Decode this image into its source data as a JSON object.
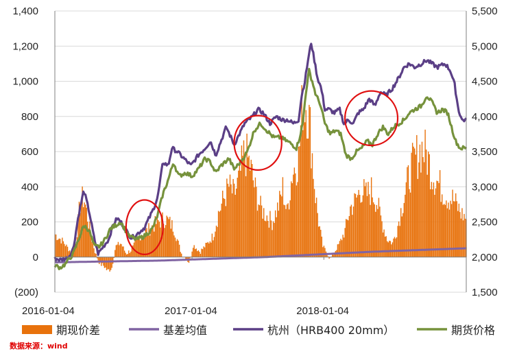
{
  "chart_data": {
    "type": "bar+line",
    "title": "",
    "x_tick_labels": [
      "2016-01-04",
      "2017-01-04",
      "2018-01-04"
    ],
    "left_axis": {
      "range": [
        -200,
        1400
      ],
      "ticks": [
        -200,
        0,
        200,
        400,
        600,
        800,
        1000,
        1200,
        1400
      ],
      "tick_labels": [
        "(200)",
        "0",
        "200",
        "400",
        "600",
        "800",
        "1,000",
        "1,200",
        "1,400"
      ]
    },
    "right_axis": {
      "range": [
        1500,
        5500
      ],
      "ticks": [
        1500,
        2000,
        2500,
        3000,
        3500,
        4000,
        4500,
        5000,
        5500
      ],
      "tick_labels": [
        "1,500",
        "2,000",
        "2,500",
        "3,000",
        "3,500",
        "4,000",
        "4,500",
        "5,000",
        "5,500"
      ]
    },
    "x_range": [
      0,
      780
    ],
    "x_tick_positions": [
      0,
      260,
      510
    ],
    "series": [
      {
        "name": "期现价差",
        "kind": "bar",
        "axis": "left",
        "color": "#e8720c",
        "keypoints": [
          [
            0,
            130
          ],
          [
            15,
            90
          ],
          [
            30,
            30
          ],
          [
            40,
            90
          ],
          [
            48,
            310
          ],
          [
            55,
            340
          ],
          [
            63,
            210
          ],
          [
            70,
            100
          ],
          [
            78,
            10
          ],
          [
            86,
            -40
          ],
          [
            93,
            -50
          ],
          [
            100,
            -80
          ],
          [
            108,
            -60
          ],
          [
            115,
            60
          ],
          [
            125,
            80
          ],
          [
            135,
            20
          ],
          [
            145,
            40
          ],
          [
            160,
            120
          ],
          [
            175,
            150
          ],
          [
            195,
            200
          ],
          [
            210,
            220
          ],
          [
            225,
            170
          ],
          [
            240,
            20
          ],
          [
            255,
            -30
          ],
          [
            262,
            70
          ],
          [
            275,
            30
          ],
          [
            290,
            80
          ],
          [
            300,
            120
          ],
          [
            310,
            250
          ],
          [
            320,
            330
          ],
          [
            330,
            400
          ],
          [
            340,
            350
          ],
          [
            350,
            450
          ],
          [
            360,
            600
          ],
          [
            370,
            520
          ],
          [
            380,
            380
          ],
          [
            390,
            280
          ],
          [
            400,
            240
          ],
          [
            412,
            200
          ],
          [
            425,
            300
          ],
          [
            432,
            390
          ],
          [
            440,
            250
          ],
          [
            450,
            480
          ],
          [
            462,
            560
          ],
          [
            470,
            900
          ],
          [
            478,
            880
          ],
          [
            485,
            700
          ],
          [
            493,
            380
          ],
          [
            500,
            200
          ],
          [
            508,
            60
          ],
          [
            515,
            30
          ],
          [
            522,
            -10
          ],
          [
            530,
            30
          ],
          [
            540,
            80
          ],
          [
            550,
            150
          ],
          [
            560,
            280
          ],
          [
            570,
            320
          ],
          [
            580,
            390
          ],
          [
            590,
            350
          ],
          [
            600,
            380
          ],
          [
            610,
            320
          ],
          [
            620,
            200
          ],
          [
            630,
            100
          ],
          [
            640,
            80
          ],
          [
            648,
            150
          ],
          [
            655,
            250
          ],
          [
            665,
            380
          ],
          [
            675,
            500
          ],
          [
            685,
            570
          ],
          [
            695,
            620
          ],
          [
            705,
            580
          ],
          [
            715,
            480
          ],
          [
            725,
            430
          ],
          [
            735,
            380
          ],
          [
            745,
            340
          ],
          [
            755,
            330
          ],
          [
            770,
            250
          ],
          [
            780,
            220
          ]
        ]
      },
      {
        "name": "基差均值",
        "kind": "line",
        "axis": "left",
        "color": "#8064a2",
        "keypoints": [
          [
            0,
            -30
          ],
          [
            200,
            -20
          ],
          [
            400,
            0
          ],
          [
            600,
            30
          ],
          [
            780,
            50
          ]
        ]
      },
      {
        "name": "杭州（HRB400 20mm）",
        "kind": "line",
        "axis": "right",
        "color": "#5b3f86",
        "keypoints": [
          [
            0,
            1980
          ],
          [
            10,
            1960
          ],
          [
            25,
            1990
          ],
          [
            35,
            2120
          ],
          [
            45,
            2600
          ],
          [
            55,
            2950
          ],
          [
            65,
            2650
          ],
          [
            75,
            2250
          ],
          [
            82,
            2050
          ],
          [
            92,
            2150
          ],
          [
            102,
            2250
          ],
          [
            110,
            2450
          ],
          [
            118,
            2550
          ],
          [
            125,
            2500
          ],
          [
            135,
            2380
          ],
          [
            145,
            2270
          ],
          [
            155,
            2320
          ],
          [
            170,
            2420
          ],
          [
            185,
            2650
          ],
          [
            195,
            2850
          ],
          [
            205,
            3350
          ],
          [
            215,
            3300
          ],
          [
            222,
            3550
          ],
          [
            232,
            3500
          ],
          [
            245,
            3400
          ],
          [
            258,
            3300
          ],
          [
            272,
            3450
          ],
          [
            285,
            3550
          ],
          [
            295,
            3650
          ],
          [
            305,
            3450
          ],
          [
            315,
            3650
          ],
          [
            325,
            3850
          ],
          [
            340,
            3600
          ],
          [
            350,
            3750
          ],
          [
            360,
            3900
          ],
          [
            375,
            4000
          ],
          [
            385,
            4100
          ],
          [
            395,
            4050
          ],
          [
            408,
            3900
          ],
          [
            420,
            4000
          ],
          [
            432,
            3950
          ],
          [
            442,
            3950
          ],
          [
            452,
            3900
          ],
          [
            462,
            3950
          ],
          [
            468,
            4300
          ],
          [
            474,
            4500
          ],
          [
            480,
            4800
          ],
          [
            486,
            5050
          ],
          [
            492,
            4800
          ],
          [
            498,
            4550
          ],
          [
            505,
            4400
          ],
          [
            512,
            4100
          ],
          [
            520,
            4100
          ],
          [
            530,
            4050
          ],
          [
            540,
            4100
          ],
          [
            548,
            3900
          ],
          [
            557,
            3950
          ],
          [
            566,
            3900
          ],
          [
            575,
            4050
          ],
          [
            585,
            4100
          ],
          [
            596,
            4250
          ],
          [
            607,
            4150
          ],
          [
            617,
            4350
          ],
          [
            628,
            4300
          ],
          [
            640,
            4400
          ],
          [
            652,
            4550
          ],
          [
            662,
            4700
          ],
          [
            672,
            4750
          ],
          [
            682,
            4700
          ],
          [
            695,
            4750
          ],
          [
            705,
            4800
          ],
          [
            715,
            4750
          ],
          [
            725,
            4700
          ],
          [
            740,
            4750
          ],
          [
            750,
            4650
          ],
          [
            758,
            4450
          ],
          [
            765,
            4100
          ],
          [
            772,
            3950
          ],
          [
            780,
            3950
          ]
        ]
      },
      {
        "name": "期货价格",
        "kind": "line",
        "axis": "right",
        "color": "#76923c",
        "keypoints": [
          [
            0,
            1880
          ],
          [
            10,
            1850
          ],
          [
            20,
            1900
          ],
          [
            35,
            2050
          ],
          [
            45,
            2250
          ],
          [
            55,
            2450
          ],
          [
            65,
            2380
          ],
          [
            75,
            2150
          ],
          [
            85,
            2150
          ],
          [
            95,
            2250
          ],
          [
            105,
            2400
          ],
          [
            115,
            2450
          ],
          [
            125,
            2500
          ],
          [
            140,
            2300
          ],
          [
            155,
            2250
          ],
          [
            170,
            2300
          ],
          [
            185,
            2400
          ],
          [
            195,
            2600
          ],
          [
            205,
            2900
          ],
          [
            215,
            3100
          ],
          [
            225,
            3350
          ],
          [
            235,
            3150
          ],
          [
            248,
            3200
          ],
          [
            260,
            3150
          ],
          [
            272,
            3250
          ],
          [
            285,
            3400
          ],
          [
            295,
            3350
          ],
          [
            305,
            3200
          ],
          [
            315,
            3300
          ],
          [
            330,
            3400
          ],
          [
            340,
            3250
          ],
          [
            352,
            3350
          ],
          [
            365,
            3500
          ],
          [
            378,
            3800
          ],
          [
            390,
            3900
          ],
          [
            402,
            3800
          ],
          [
            415,
            3700
          ],
          [
            428,
            3700
          ],
          [
            440,
            3650
          ],
          [
            450,
            3600
          ],
          [
            458,
            3550
          ],
          [
            464,
            3700
          ],
          [
            470,
            3900
          ],
          [
            476,
            4350
          ],
          [
            482,
            4650
          ],
          [
            488,
            4500
          ],
          [
            495,
            4300
          ],
          [
            502,
            4200
          ],
          [
            512,
            3900
          ],
          [
            522,
            3750
          ],
          [
            532,
            3800
          ],
          [
            542,
            3750
          ],
          [
            552,
            3450
          ],
          [
            562,
            3400
          ],
          [
            572,
            3500
          ],
          [
            582,
            3550
          ],
          [
            592,
            3650
          ],
          [
            602,
            3600
          ],
          [
            612,
            3750
          ],
          [
            622,
            3850
          ],
          [
            632,
            3750
          ],
          [
            642,
            3850
          ],
          [
            652,
            3900
          ],
          [
            662,
            3950
          ],
          [
            672,
            4050
          ],
          [
            682,
            4100
          ],
          [
            695,
            4150
          ],
          [
            705,
            4300
          ],
          [
            715,
            4200
          ],
          [
            725,
            4050
          ],
          [
            735,
            4100
          ],
          [
            745,
            4050
          ],
          [
            752,
            3850
          ],
          [
            760,
            3650
          ],
          [
            768,
            3550
          ],
          [
            775,
            3550
          ],
          [
            780,
            3550
          ]
        ]
      }
    ],
    "annotations": [
      {
        "kind": "ellipse",
        "color": "#e01010",
        "cx": 170,
        "cy_left": 170,
        "rx": 35,
        "ry_left": 310
      },
      {
        "kind": "ellipse",
        "color": "#e01010",
        "cx": 385,
        "cy_left": 650,
        "rx": 45,
        "ry_left": 310
      },
      {
        "kind": "ellipse",
        "color": "#e01010",
        "cx": 600,
        "cy_left": 790,
        "rx": 50,
        "ry_left": 310
      }
    ],
    "source_note": "数据来源：wind"
  }
}
